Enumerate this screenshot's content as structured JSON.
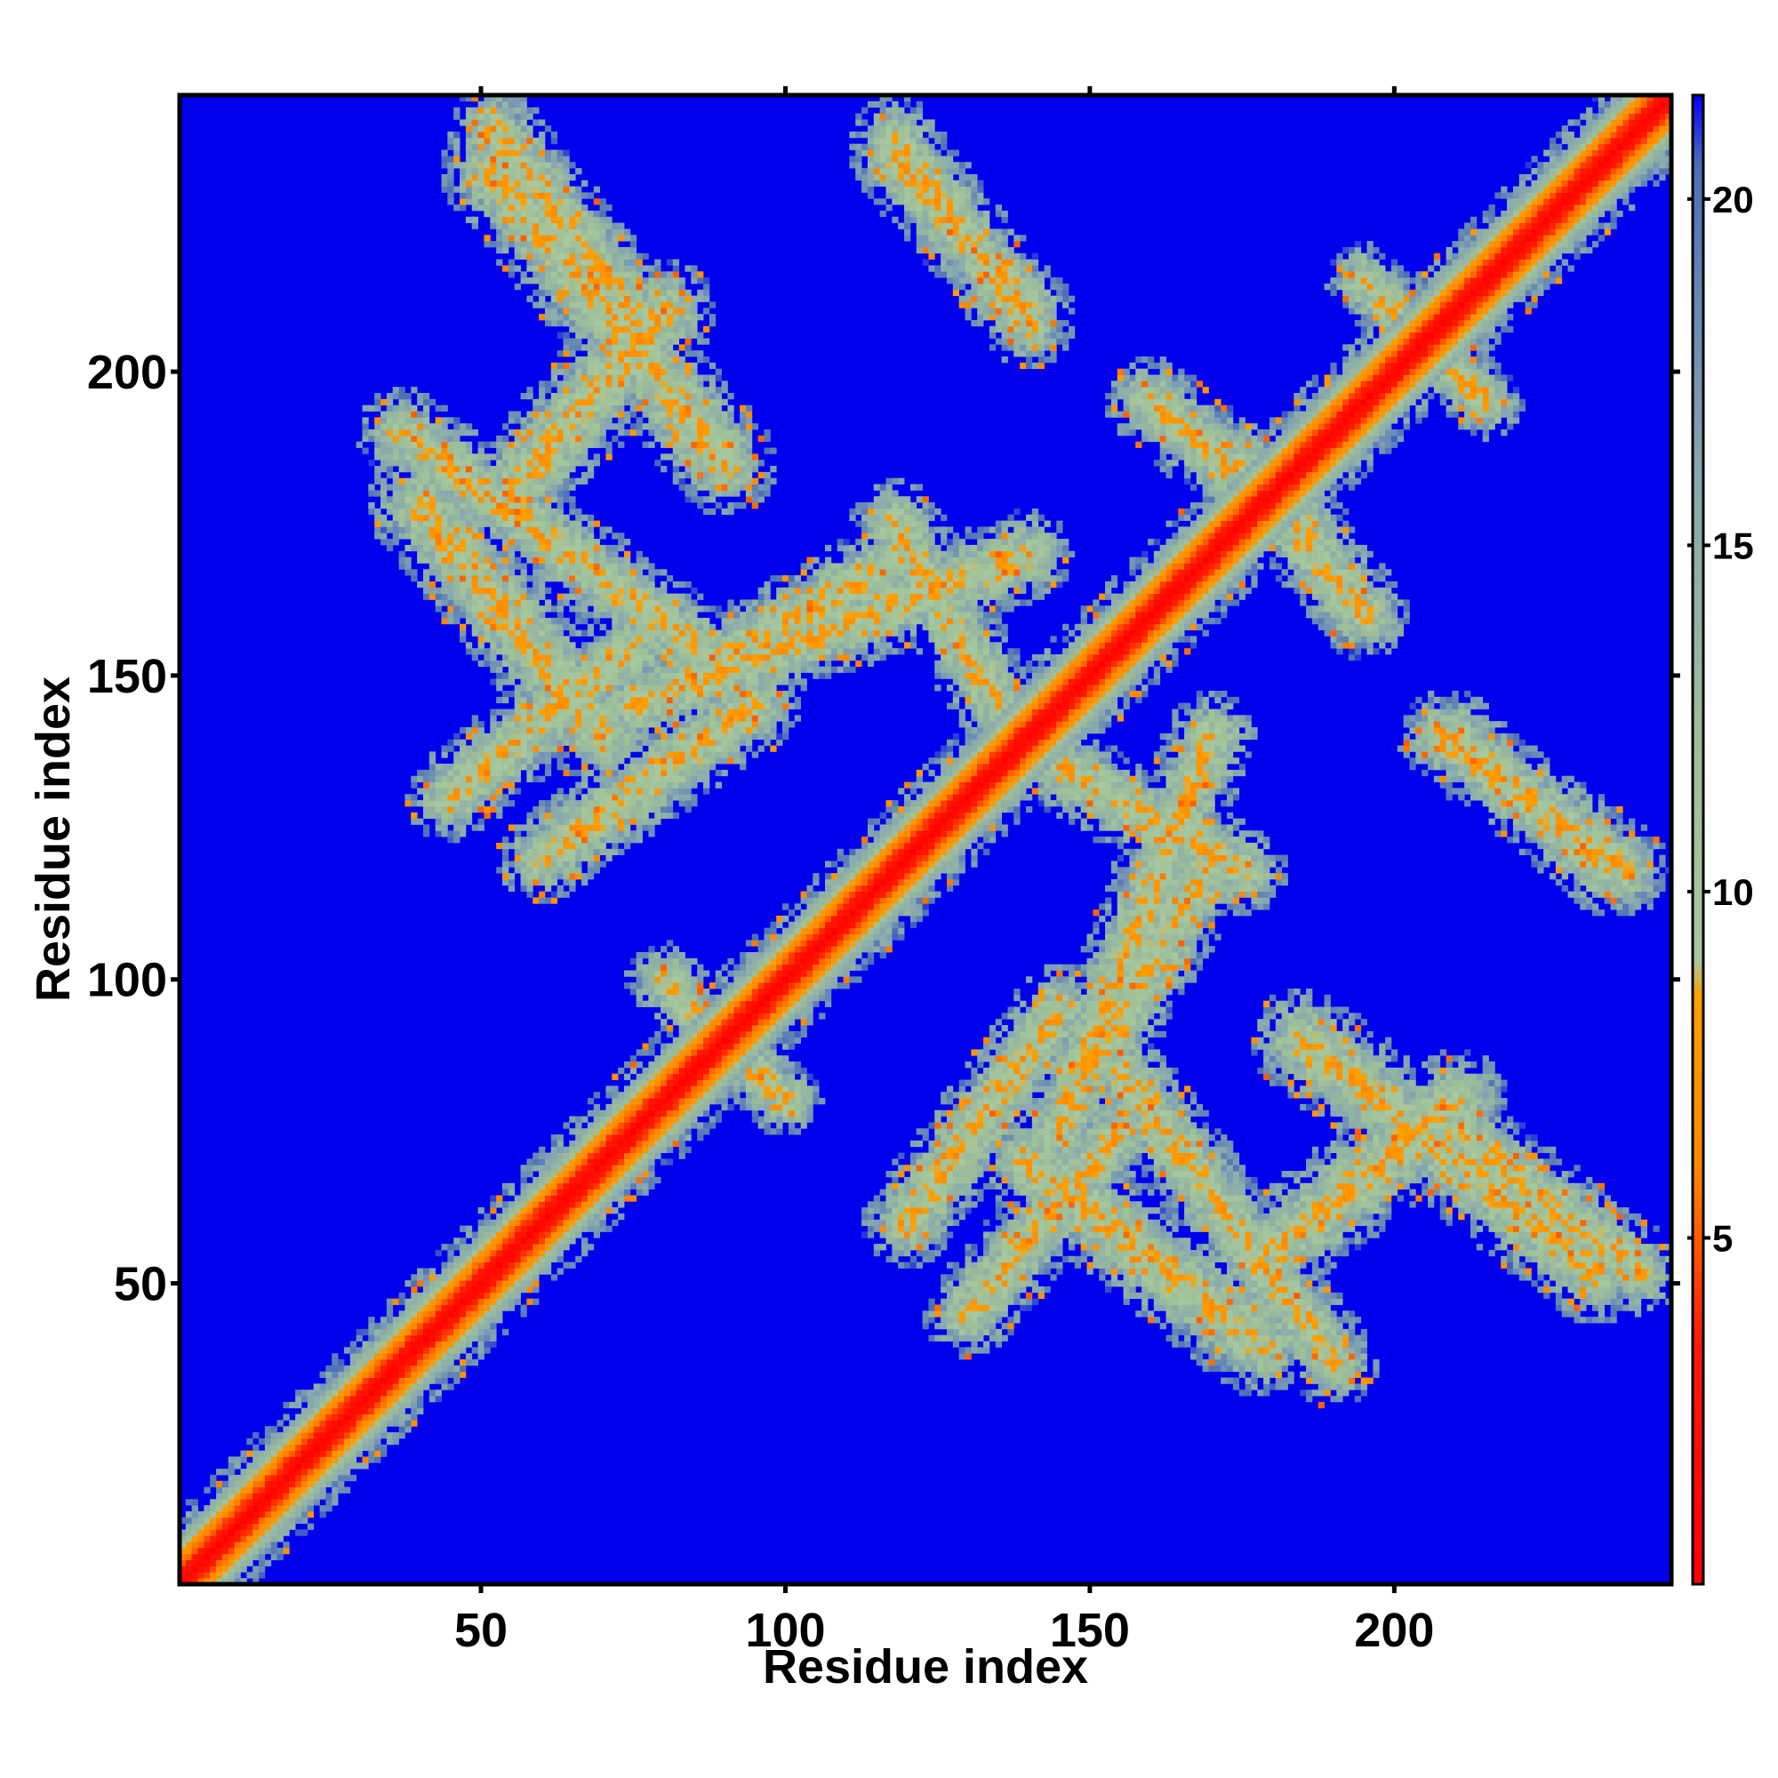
{
  "chart_data": {
    "type": "heatmap",
    "title": "",
    "xlabel": "Residue index",
    "ylabel": "Residue index",
    "n_residues": 245,
    "xlim": [
      1,
      245
    ],
    "ylim": [
      1,
      245
    ],
    "x_ticks": [
      50,
      100,
      150,
      200
    ],
    "y_ticks": [
      50,
      100,
      150,
      200
    ],
    "colorbar": {
      "ticks": [
        5,
        10,
        15,
        20
      ],
      "range": [
        0,
        21.5
      ],
      "colors": [
        {
          "value": 0,
          "color": "#ff0000"
        },
        {
          "value": 3.5,
          "color": "#ff1a00"
        },
        {
          "value": 6,
          "color": "#ff8800"
        },
        {
          "value": 8.5,
          "color": "#ffa000"
        },
        {
          "value": 9,
          "color": "#a8c8a0"
        },
        {
          "value": 12,
          "color": "#9fbf98"
        },
        {
          "value": 16,
          "color": "#88a8b0"
        },
        {
          "value": 20.5,
          "color": "#4a6fb8"
        },
        {
          "value": 21.5,
          "color": "#0000ff"
        }
      ]
    },
    "background_value": 21.5,
    "background_color": "#0000ee",
    "description_of_bands": [
      {
        "kind": "diagonal",
        "start": [
          1,
          1
        ],
        "end": [
          245,
          245
        ],
        "width": 7
      },
      {
        "kind": "contact-band",
        "start": [
          52,
          233
        ],
        "end": [
          90,
          185
        ],
        "width": 7
      },
      {
        "kind": "contact-band",
        "start": [
          37,
          190
        ],
        "end": [
          85,
          155
        ],
        "width": 6
      },
      {
        "kind": "contact-band",
        "start": [
          45,
          130
        ],
        "end": [
          75,
          155
        ],
        "width": 6
      },
      {
        "kind": "contact-band",
        "start": [
          75,
          145
        ],
        "end": [
          140,
          170
        ],
        "width": 6
      },
      {
        "kind": "contact-band",
        "start": [
          118,
          235
        ],
        "end": [
          140,
          210
        ],
        "width": 6
      },
      {
        "kind": "contact-band",
        "start": [
          145,
          135
        ],
        "end": [
          175,
          118
        ],
        "width": 6
      },
      {
        "kind": "contact-band",
        "start": [
          140,
          70
        ],
        "end": [
          178,
          40
        ],
        "width": 7
      },
      {
        "kind": "contact-band",
        "start": [
          120,
          60
        ],
        "end": [
          145,
          95
        ],
        "width": 6
      },
      {
        "kind": "contact-band",
        "start": [
          150,
          85
        ],
        "end": [
          170,
          120
        ],
        "width": 6
      },
      {
        "kind": "contact-band",
        "start": [
          180,
          55
        ],
        "end": [
          210,
          80
        ],
        "width": 7
      },
      {
        "kind": "contact-band",
        "start": [
          210,
          75
        ],
        "end": [
          240,
          52
        ],
        "width": 6
      },
      {
        "kind": "contact-band",
        "start": [
          208,
          140
        ],
        "end": [
          238,
          118
        ],
        "width": 6
      },
      {
        "kind": "contact-band",
        "start": [
          160,
          195
        ],
        "end": [
          185,
          175
        ],
        "width": 6
      },
      {
        "kind": "contact-band",
        "start": [
          200,
          210
        ],
        "end": [
          215,
          195
        ],
        "width": 5
      },
      {
        "kind": "contact-band",
        "start": [
          90,
          90
        ],
        "end": [
          100,
          80
        ],
        "width": 5
      }
    ]
  }
}
